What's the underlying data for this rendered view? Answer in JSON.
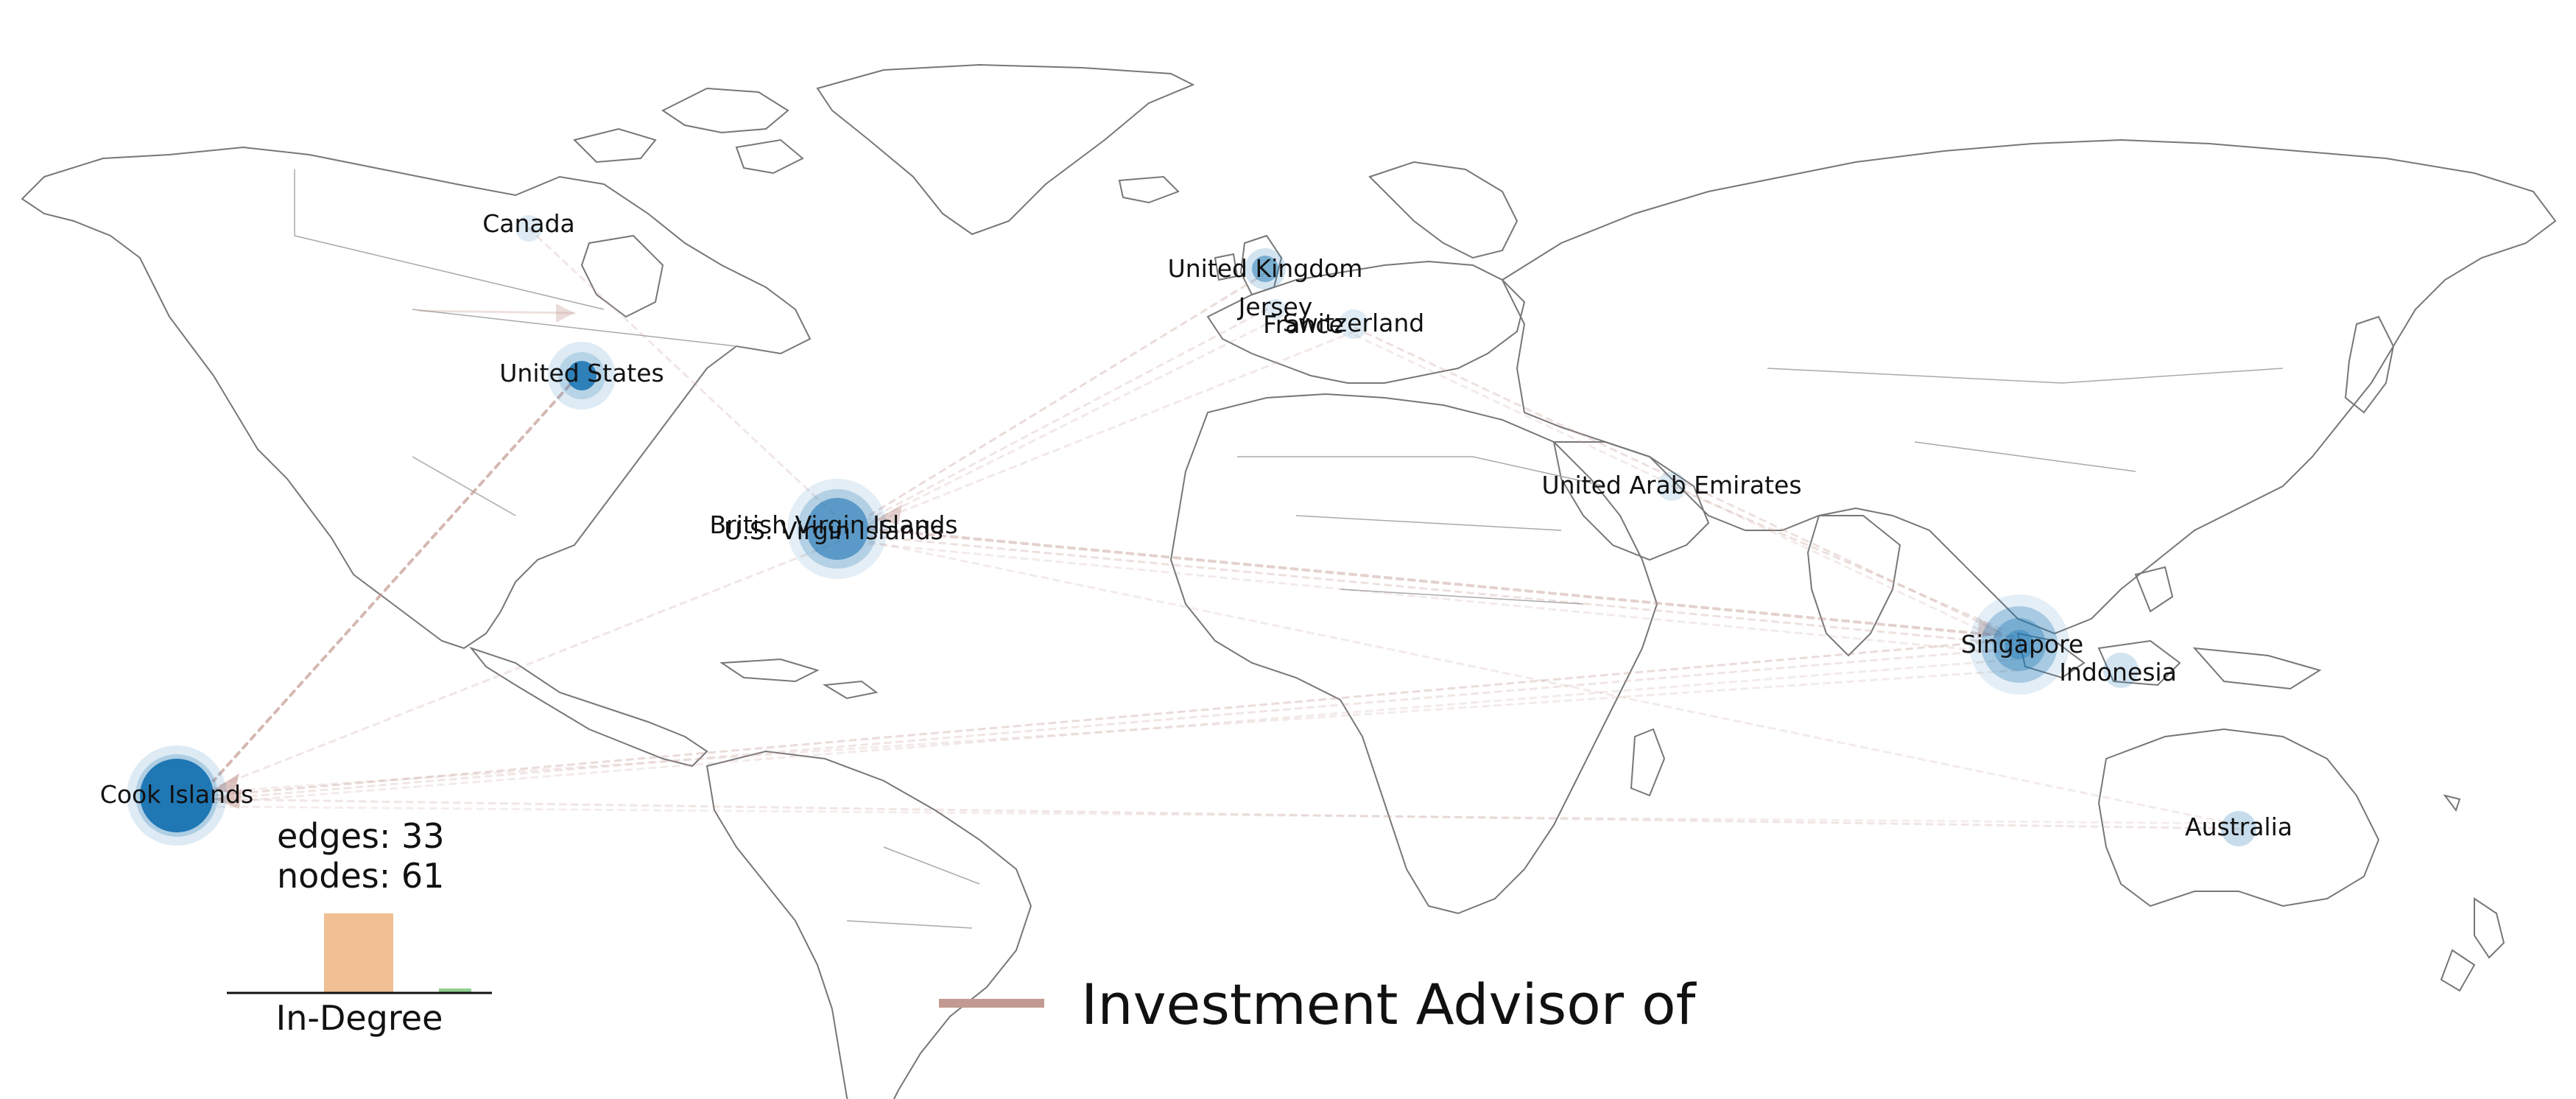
{
  "map": {
    "node_labels": {
      "canada": "Canada",
      "united_states": "United States",
      "united_kingdom": "United Kingdom",
      "jersey": "Jersey",
      "france": "France",
      "switzerland": "Switzerland",
      "uae": "United Arab Emirates",
      "bvi": "British Virgin Islands",
      "usvi": "U.S. Virgin Islands",
      "singapore": "Singapore",
      "indonesia": "Indonesia",
      "cook_islands": "Cook Islands",
      "australia": "Australia"
    },
    "stats": {
      "edges": "edges: 33",
      "nodes": "nodes: 61"
    },
    "histogram": {
      "label": "In-Degree",
      "colors": [
        "#f0bf94",
        "#8fce8f"
      ]
    },
    "legend": {
      "label": "Investment Advisor of",
      "color": "#c39a92"
    },
    "colors": {
      "node": "#1f77b4",
      "edge": "#c39a92",
      "land": "#777777"
    }
  }
}
